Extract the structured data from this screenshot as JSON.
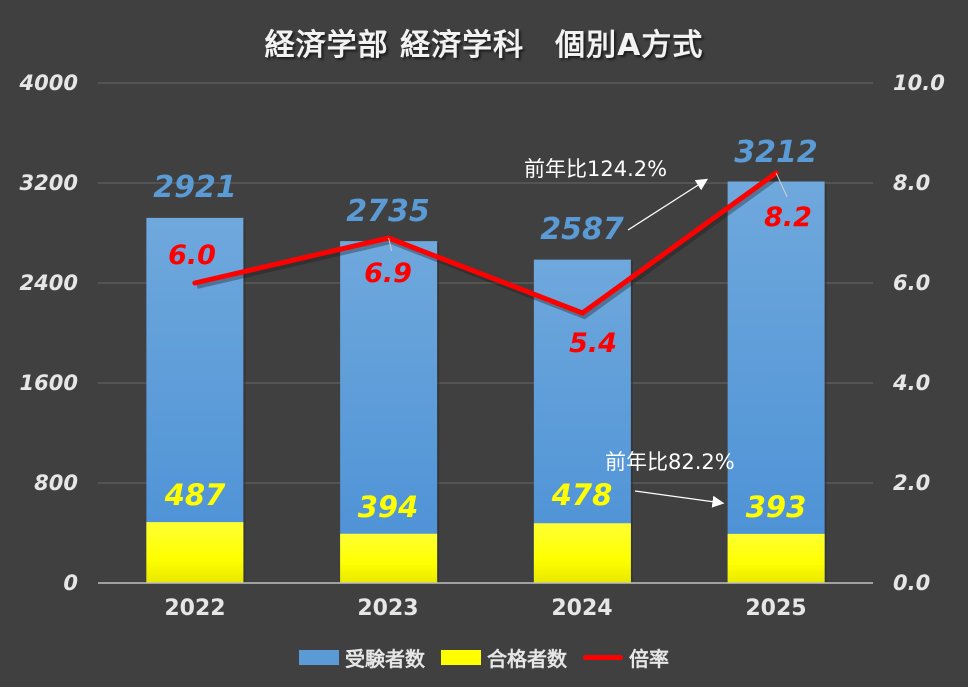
{
  "chart_data": {
    "type": "bar",
    "title": "経済学部 経済学科　個別A方式",
    "categories": [
      "2022",
      "2023",
      "2024",
      "2025"
    ],
    "series": [
      {
        "name": "受験者数",
        "type": "bar",
        "axis": "left",
        "color": "#5b9bd5",
        "values": [
          2921,
          2735,
          2587,
          3212
        ]
      },
      {
        "name": "合格者数",
        "type": "bar",
        "axis": "left",
        "color": "#ffff00",
        "values": [
          487,
          394,
          478,
          393
        ]
      },
      {
        "name": "倍率",
        "type": "line",
        "axis": "right",
        "color": "#ff0000",
        "values": [
          6.0,
          6.9,
          5.4,
          8.2
        ]
      }
    ],
    "y_left": {
      "ticks": [
        "0",
        "800",
        "1600",
        "2400",
        "3200",
        "4000"
      ],
      "ylim": [
        0,
        4000
      ]
    },
    "y_right": {
      "ticks": [
        "0.0",
        "2.0",
        "4.0",
        "6.0",
        "8.0",
        "10.0"
      ],
      "ylim": [
        0,
        10
      ]
    },
    "xlabel": "",
    "ylabel": "",
    "grid": true,
    "legend_position": "bottom",
    "annotations": [
      {
        "text": "前年比124.2%",
        "target": "受験者数 2025"
      },
      {
        "text": "前年比82.2%",
        "target": "合格者数 2025"
      }
    ]
  },
  "title": "経済学部 経済学科　個別A方式",
  "y_left_ticks": [
    "4000",
    "3200",
    "2400",
    "1600",
    "800",
    "0"
  ],
  "y_right_ticks": [
    "10.0",
    "8.0",
    "6.0",
    "4.0",
    "2.0",
    "0.0"
  ],
  "x_ticks": [
    "2022",
    "2023",
    "2024",
    "2025"
  ],
  "total_labels": [
    "2921",
    "2735",
    "2587",
    "3212"
  ],
  "passed_labels": [
    "487",
    "394",
    "478",
    "393"
  ],
  "ratio_labels": [
    "6.0",
    "6.9",
    "5.4",
    "8.2"
  ],
  "annotations": {
    "total_yoy": "前年比124.2%",
    "passed_yoy": "前年比82.2%"
  },
  "legend": {
    "total": "受験者数",
    "passed": "合格者数",
    "ratio": "倍率"
  },
  "colors": {
    "background": "#404040",
    "total": "#5b9bd5",
    "passed": "#ffff00",
    "ratio": "#ff0000",
    "grid": "#5a5a5a"
  }
}
